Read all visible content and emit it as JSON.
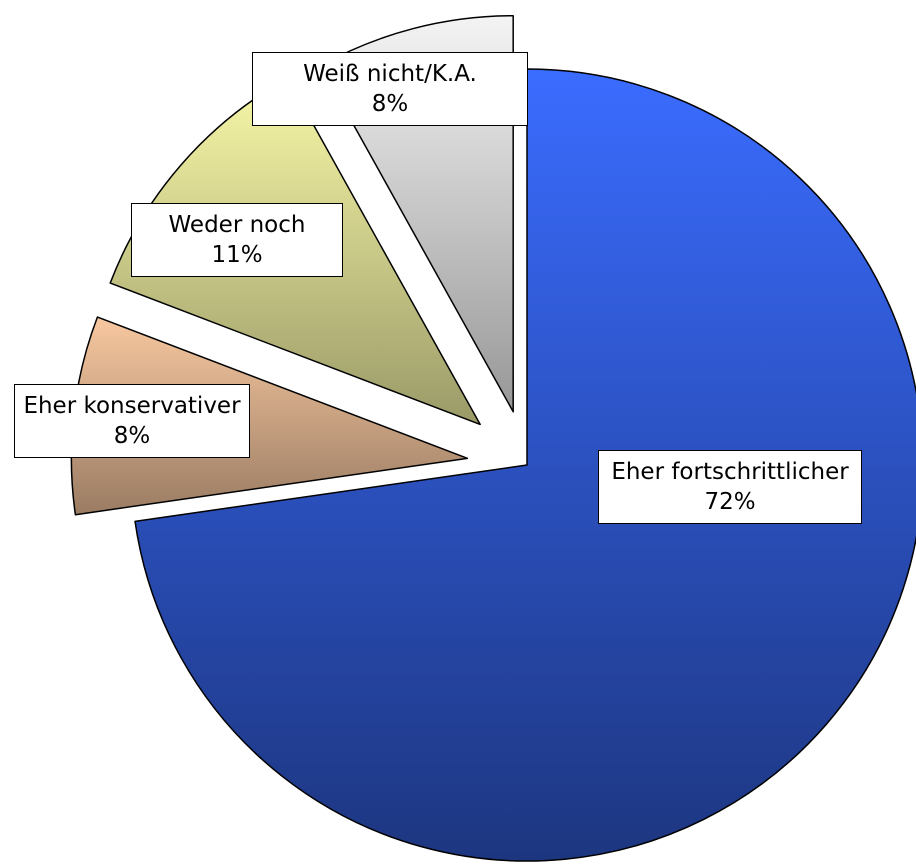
{
  "chart_data": {
    "type": "pie",
    "categories": [
      "Eher fortschrittlicher",
      "Eher konservativer",
      "Weder noch",
      "Weiß nicht/K.A."
    ],
    "values": [
      72,
      8,
      11,
      8
    ],
    "value_labels": [
      "72%",
      "8%",
      "11%",
      "8%"
    ],
    "colors": [
      "#3a6cff",
      "#f8c8a0",
      "#f8f8a8",
      "#f4f4f4"
    ]
  }
}
